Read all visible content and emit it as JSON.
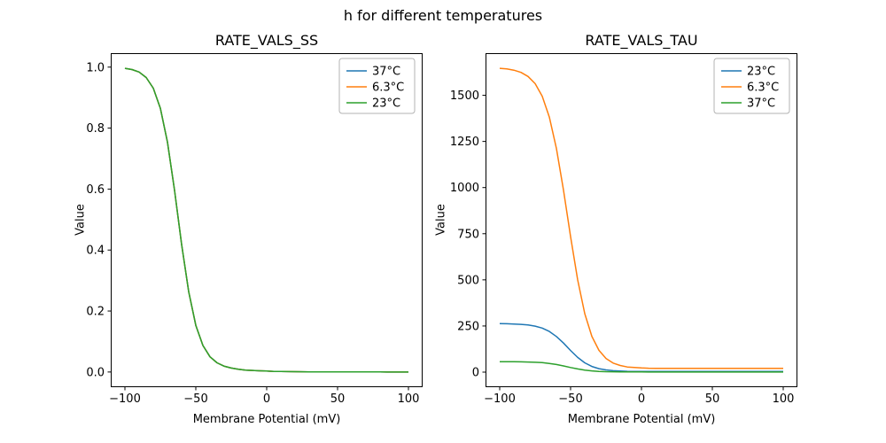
{
  "figure": {
    "title": "h for different temperatures"
  },
  "chart_data": [
    {
      "type": "line",
      "title": "RATE_VALS_SS",
      "xlabel": "Membrane Potential (mV)",
      "ylabel": "Value",
      "xlim": [
        -110,
        110
      ],
      "ylim": [
        -0.0498,
        1.0458
      ],
      "xticks": [
        -100,
        -50,
        0,
        50,
        100
      ],
      "xtick_labels": [
        "−100",
        "−50",
        "0",
        "50",
        "100"
      ],
      "yticks": [
        0,
        0.2,
        0.4,
        0.6,
        0.8,
        1.0
      ],
      "ytick_labels": [
        "0.0",
        "0.2",
        "0.4",
        "0.6",
        "0.8",
        "1.0"
      ],
      "legend_position": "upper right",
      "grid": false,
      "x": [
        -100,
        -95,
        -90,
        -85,
        -80,
        -75,
        -70,
        -65,
        -60,
        -55,
        -50,
        -45,
        -40,
        -35,
        -30,
        -25,
        -20,
        -15,
        -10,
        -5,
        0,
        5,
        10,
        15,
        20,
        25,
        30,
        35,
        40,
        45,
        50,
        55,
        60,
        65,
        70,
        75,
        80,
        85,
        90,
        95,
        100
      ],
      "series": [
        {
          "name": "37°C",
          "color": "#1f77b4",
          "values": [
            0.996,
            0.992,
            0.984,
            0.966,
            0.931,
            0.865,
            0.754,
            0.596,
            0.418,
            0.263,
            0.153,
            0.087,
            0.05,
            0.03,
            0.019,
            0.013,
            0.009,
            0.006,
            0.005,
            0.004,
            0.003,
            0.002,
            0.0017,
            0.0013,
            0.001,
            0.0008,
            0.0006,
            0.0005,
            0.0004,
            0.0003,
            0.0002,
            0.0002,
            0.0001,
            0.0001,
            0.0001,
            0.0001,
            0.0001,
            0,
            0,
            0,
            0
          ]
        },
        {
          "name": "6.3°C",
          "color": "#ff7f0e",
          "values": [
            0.996,
            0.992,
            0.984,
            0.966,
            0.931,
            0.865,
            0.754,
            0.596,
            0.418,
            0.263,
            0.153,
            0.087,
            0.05,
            0.03,
            0.019,
            0.013,
            0.009,
            0.006,
            0.005,
            0.004,
            0.003,
            0.002,
            0.0017,
            0.0013,
            0.001,
            0.0008,
            0.0006,
            0.0005,
            0.0004,
            0.0003,
            0.0002,
            0.0002,
            0.0001,
            0.0001,
            0.0001,
            0.0001,
            0.0001,
            0,
            0,
            0,
            0
          ]
        },
        {
          "name": "23°C",
          "color": "#2ca02c",
          "values": [
            0.996,
            0.992,
            0.984,
            0.966,
            0.931,
            0.865,
            0.754,
            0.596,
            0.418,
            0.263,
            0.153,
            0.087,
            0.05,
            0.03,
            0.019,
            0.013,
            0.009,
            0.006,
            0.005,
            0.004,
            0.003,
            0.002,
            0.0017,
            0.0013,
            0.001,
            0.0008,
            0.0006,
            0.0005,
            0.0004,
            0.0003,
            0.0002,
            0.0002,
            0.0001,
            0.0001,
            0.0001,
            0.0001,
            0.0001,
            0,
            0,
            0,
            0
          ]
        }
      ]
    },
    {
      "type": "line",
      "title": "RATE_VALS_TAU",
      "xlabel": "Membrane Potential (mV)",
      "ylabel": "Value",
      "xlim": [
        -110,
        110
      ],
      "ylim": [
        -81.6,
        1728.3
      ],
      "xticks": [
        -100,
        -50,
        0,
        50,
        100
      ],
      "xtick_labels": [
        "−100",
        "−50",
        "0",
        "50",
        "100"
      ],
      "yticks": [
        0,
        250,
        500,
        750,
        1000,
        1250,
        1500
      ],
      "ytick_labels": [
        "0",
        "250",
        "500",
        "750",
        "1000",
        "1250",
        "1500"
      ],
      "legend_position": "upper right",
      "grid": false,
      "x": [
        -100,
        -95,
        -90,
        -85,
        -80,
        -75,
        -70,
        -65,
        -60,
        -55,
        -50,
        -45,
        -40,
        -35,
        -30,
        -25,
        -20,
        -15,
        -10,
        -5,
        0,
        5,
        10,
        15,
        20,
        25,
        30,
        35,
        40,
        45,
        50,
        55,
        60,
        65,
        70,
        75,
        80,
        85,
        90,
        95,
        100
      ],
      "series": [
        {
          "name": "23°C",
          "color": "#1f77b4",
          "values": [
            262.5,
            262,
            260.9,
            259,
            255.5,
            249.3,
            238.4,
            220.4,
            193.2,
            157.3,
            117,
            79.7,
            50.6,
            30.9,
            18.8,
            11.8,
            7.9,
            5.7,
            4.5,
            3.9,
            3.6,
            3.4,
            3.3,
            3.3,
            3.2,
            3.2,
            3.2,
            3.2,
            3.2,
            3.2,
            3.2,
            3.2,
            3.2,
            3.2,
            3.2,
            3.2,
            3.2,
            3.2,
            3.2,
            3.2,
            3.2
          ]
        },
        {
          "name": "6.3°C",
          "color": "#ff7f0e",
          "values": [
            1646,
            1643,
            1636,
            1624,
            1602,
            1563,
            1495,
            1382,
            1212,
            986,
            734,
            500,
            317,
            194,
            118,
            74,
            49,
            36,
            28,
            25,
            22.4,
            21.3,
            20.7,
            20.4,
            20.2,
            20.1,
            20.1,
            20,
            20,
            20,
            20,
            20,
            20,
            20,
            20,
            20,
            20,
            20,
            20,
            20,
            20
          ]
        },
        {
          "name": "37°C",
          "color": "#2ca02c",
          "values": [
            56.4,
            56.3,
            56,
            55.6,
            54.9,
            53.5,
            51.2,
            47.3,
            41.5,
            33.8,
            25.1,
            17.1,
            10.9,
            6.6,
            4,
            2.5,
            1.7,
            1.2,
            1,
            0.84,
            0.77,
            0.73,
            0.71,
            0.7,
            0.69,
            0.69,
            0.69,
            0.68,
            0.68,
            0.68,
            0.68,
            0.68,
            0.68,
            0.68,
            0.68,
            0.68,
            0.68,
            0.68,
            0.68,
            0.68,
            0.68
          ]
        }
      ]
    }
  ]
}
